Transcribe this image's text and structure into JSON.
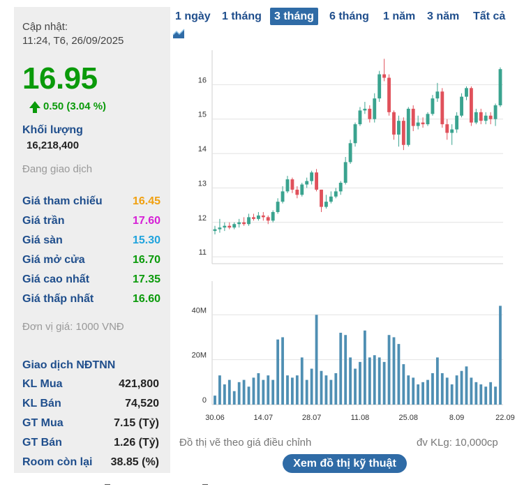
{
  "summary": {
    "update_label": "Cập nhật:",
    "update_time": "11:24, T6, 26/09/2025",
    "price": "16.95",
    "change": "0.50 (3.04 %)",
    "volume_label": "Khối lượng",
    "volume_value": "16,218,400",
    "status": "Đang giao dịch",
    "unit_note": "Đơn vị giá: 1000 VNĐ"
  },
  "stats": [
    {
      "label": "Giá tham chiếu",
      "value": "16.45",
      "color": "#f0a010"
    },
    {
      "label": "Giá trần",
      "value": "17.60",
      "color": "#d61fd6"
    },
    {
      "label": "Giá sàn",
      "value": "15.30",
      "color": "#1fa3dd"
    },
    {
      "label": "Giá mở cửa",
      "value": "16.70",
      "color": "#0a9a0a"
    },
    {
      "label": "Giá cao nhất",
      "value": "17.35",
      "color": "#0a9a0a"
    },
    {
      "label": "Giá thấp nhất",
      "value": "16.60",
      "color": "#0a9a0a"
    }
  ],
  "foreign": {
    "title": "Giao dịch NĐTNN",
    "rows": [
      {
        "label": "KL Mua",
        "value": "421,800"
      },
      {
        "label": "KL Bán",
        "value": "74,520"
      },
      {
        "label": "GT Mua",
        "value": "7.15 (Tỷ)"
      },
      {
        "label": "GT Bán",
        "value": "1.26 (Tỷ)"
      },
      {
        "label": "Room còn lại",
        "value": "38.85 (%)"
      }
    ]
  },
  "range_tabs": [
    {
      "label": "1 ngày",
      "active": false
    },
    {
      "label": "1 tháng",
      "active": false
    },
    {
      "label": "3 tháng",
      "active": true
    },
    {
      "label": "6 tháng",
      "active": false
    },
    {
      "label": "1 năm",
      "active": false
    },
    {
      "label": "3 năm",
      "active": false
    },
    {
      "label": "Tất cả",
      "active": false
    }
  ],
  "captions": {
    "left": "Đồ thị vẽ theo giá điều chỉnh",
    "right": "đv KLg: 10,000cp",
    "button": "Xem đồ thị kỹ thuật"
  },
  "chart_data": {
    "type": "candlestick",
    "price_axis": {
      "ylim": [
        10.8,
        17.0
      ],
      "ticks": [
        11,
        12,
        13,
        14,
        15,
        16
      ]
    },
    "volume_axis": {
      "ylim": [
        0,
        55
      ],
      "ticks": [
        0,
        20,
        40
      ],
      "tick_labels": [
        "0",
        "20M",
        "40M"
      ],
      "unit": "M"
    },
    "x_tick_labels": [
      {
        "index": 0,
        "label": "30.06"
      },
      {
        "index": 10,
        "label": "14.07"
      },
      {
        "index": 20,
        "label": "28.07"
      },
      {
        "index": 30,
        "label": "11.08"
      },
      {
        "index": 40,
        "label": "25.08"
      },
      {
        "index": 50,
        "label": "8.09"
      },
      {
        "index": 60,
        "label": "22.09"
      }
    ],
    "up_color": "#3aa38f",
    "down_color": "#e0515b",
    "volume_color": "#4f8fb3",
    "candles": [
      {
        "o": 11.75,
        "h": 11.9,
        "l": 11.65,
        "c": 11.8,
        "v": 4
      },
      {
        "o": 11.8,
        "h": 12.1,
        "l": 11.7,
        "c": 11.85,
        "v": 13
      },
      {
        "o": 11.85,
        "h": 12.0,
        "l": 11.75,
        "c": 11.9,
        "v": 9
      },
      {
        "o": 11.9,
        "h": 12.0,
        "l": 11.8,
        "c": 11.85,
        "v": 11
      },
      {
        "o": 11.85,
        "h": 12.0,
        "l": 11.8,
        "c": 11.95,
        "v": 6
      },
      {
        "o": 11.95,
        "h": 12.1,
        "l": 11.85,
        "c": 12.0,
        "v": 10
      },
      {
        "o": 12.0,
        "h": 12.15,
        "l": 11.9,
        "c": 11.95,
        "v": 11
      },
      {
        "o": 11.95,
        "h": 12.25,
        "l": 11.9,
        "c": 12.15,
        "v": 8
      },
      {
        "o": 12.15,
        "h": 12.25,
        "l": 12.05,
        "c": 12.1,
        "v": 12
      },
      {
        "o": 12.1,
        "h": 12.3,
        "l": 12.05,
        "c": 12.2,
        "v": 14
      },
      {
        "o": 12.2,
        "h": 12.3,
        "l": 12.05,
        "c": 12.15,
        "v": 11
      },
      {
        "o": 12.15,
        "h": 12.2,
        "l": 11.95,
        "c": 12.05,
        "v": 13
      },
      {
        "o": 12.05,
        "h": 12.35,
        "l": 12.0,
        "c": 12.3,
        "v": 11
      },
      {
        "o": 12.3,
        "h": 12.7,
        "l": 12.25,
        "c": 12.6,
        "v": 29
      },
      {
        "o": 12.6,
        "h": 13.05,
        "l": 12.55,
        "c": 12.9,
        "v": 30
      },
      {
        "o": 12.9,
        "h": 13.35,
        "l": 12.85,
        "c": 13.25,
        "v": 13
      },
      {
        "o": 13.25,
        "h": 13.3,
        "l": 12.85,
        "c": 12.95,
        "v": 12
      },
      {
        "o": 12.95,
        "h": 13.05,
        "l": 12.7,
        "c": 12.8,
        "v": 13
      },
      {
        "o": 12.8,
        "h": 13.15,
        "l": 12.75,
        "c": 13.1,
        "v": 21
      },
      {
        "o": 13.1,
        "h": 13.3,
        "l": 13.0,
        "c": 13.2,
        "v": 11
      },
      {
        "o": 13.2,
        "h": 13.5,
        "l": 13.1,
        "c": 13.45,
        "v": 16
      },
      {
        "o": 13.45,
        "h": 13.55,
        "l": 12.9,
        "c": 12.95,
        "v": 40
      },
      {
        "o": 12.95,
        "h": 12.95,
        "l": 12.3,
        "c": 12.45,
        "v": 15
      },
      {
        "o": 12.45,
        "h": 12.8,
        "l": 12.4,
        "c": 12.6,
        "v": 13
      },
      {
        "o": 12.6,
        "h": 12.9,
        "l": 12.55,
        "c": 12.75,
        "v": 11
      },
      {
        "o": 12.75,
        "h": 13.0,
        "l": 12.7,
        "c": 12.9,
        "v": 14
      },
      {
        "o": 12.9,
        "h": 13.2,
        "l": 12.8,
        "c": 13.15,
        "v": 32
      },
      {
        "o": 13.15,
        "h": 13.9,
        "l": 13.1,
        "c": 13.75,
        "v": 31
      },
      {
        "o": 13.75,
        "h": 14.4,
        "l": 13.7,
        "c": 14.3,
        "v": 21
      },
      {
        "o": 14.3,
        "h": 14.9,
        "l": 14.2,
        "c": 14.85,
        "v": 16
      },
      {
        "o": 14.85,
        "h": 15.35,
        "l": 14.8,
        "c": 15.25,
        "v": 19
      },
      {
        "o": 15.25,
        "h": 15.5,
        "l": 15.15,
        "c": 15.3,
        "v": 33
      },
      {
        "o": 15.3,
        "h": 15.4,
        "l": 14.9,
        "c": 15.0,
        "v": 21
      },
      {
        "o": 15.0,
        "h": 15.75,
        "l": 14.9,
        "c": 15.6,
        "v": 22
      },
      {
        "o": 15.6,
        "h": 16.4,
        "l": 15.5,
        "c": 16.3,
        "v": 21
      },
      {
        "o": 16.3,
        "h": 16.75,
        "l": 16.1,
        "c": 16.2,
        "v": 19
      },
      {
        "o": 16.2,
        "h": 16.3,
        "l": 15.1,
        "c": 15.2,
        "v": 31
      },
      {
        "o": 15.2,
        "h": 15.25,
        "l": 14.4,
        "c": 14.55,
        "v": 30
      },
      {
        "o": 14.55,
        "h": 15.1,
        "l": 14.2,
        "c": 14.95,
        "v": 27
      },
      {
        "o": 14.95,
        "h": 15.05,
        "l": 14.1,
        "c": 14.25,
        "v": 18
      },
      {
        "o": 14.25,
        "h": 15.35,
        "l": 14.2,
        "c": 15.3,
        "v": 13
      },
      {
        "o": 15.3,
        "h": 15.4,
        "l": 14.65,
        "c": 14.8,
        "v": 12
      },
      {
        "o": 14.8,
        "h": 15.1,
        "l": 14.7,
        "c": 14.9,
        "v": 9
      },
      {
        "o": 14.9,
        "h": 15.05,
        "l": 14.75,
        "c": 14.85,
        "v": 10
      },
      {
        "o": 14.85,
        "h": 15.2,
        "l": 14.8,
        "c": 15.15,
        "v": 11
      },
      {
        "o": 15.15,
        "h": 15.7,
        "l": 15.1,
        "c": 15.6,
        "v": 14
      },
      {
        "o": 15.6,
        "h": 16.05,
        "l": 15.5,
        "c": 15.8,
        "v": 21
      },
      {
        "o": 15.8,
        "h": 15.9,
        "l": 14.75,
        "c": 14.85,
        "v": 14
      },
      {
        "o": 14.85,
        "h": 15.0,
        "l": 14.4,
        "c": 14.6,
        "v": 12
      },
      {
        "o": 14.6,
        "h": 14.85,
        "l": 14.25,
        "c": 14.7,
        "v": 9
      },
      {
        "o": 14.7,
        "h": 15.2,
        "l": 14.6,
        "c": 15.1,
        "v": 13
      },
      {
        "o": 15.1,
        "h": 15.75,
        "l": 15.05,
        "c": 15.65,
        "v": 15
      },
      {
        "o": 15.65,
        "h": 15.95,
        "l": 15.55,
        "c": 15.9,
        "v": 17
      },
      {
        "o": 15.9,
        "h": 15.95,
        "l": 14.8,
        "c": 14.9,
        "v": 12
      },
      {
        "o": 14.9,
        "h": 15.3,
        "l": 14.85,
        "c": 15.2,
        "v": 10
      },
      {
        "o": 15.2,
        "h": 15.3,
        "l": 14.85,
        "c": 14.95,
        "v": 9
      },
      {
        "o": 14.95,
        "h": 15.2,
        "l": 14.85,
        "c": 15.1,
        "v": 8
      },
      {
        "o": 15.1,
        "h": 15.2,
        "l": 14.85,
        "c": 15.0,
        "v": 10
      },
      {
        "o": 15.0,
        "h": 15.45,
        "l": 14.8,
        "c": 15.4,
        "v": 8
      },
      {
        "o": 15.4,
        "h": 16.5,
        "l": 15.35,
        "c": 16.45,
        "v": 44
      }
    ]
  }
}
